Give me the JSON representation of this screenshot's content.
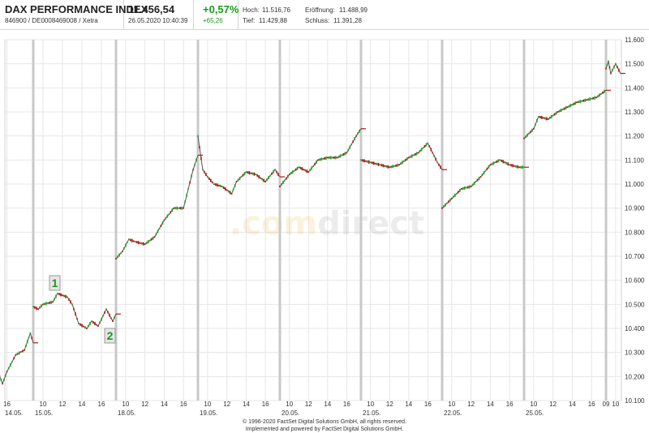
{
  "header": {
    "title": "DAX PERFORMANCE INDEX",
    "ids": "846900 / DE0008469008 / Xetra",
    "price": "11.456,54",
    "datetime": "26.05.2020 10:40:39",
    "change_pct": "+0,57%",
    "change_abs": "+65,26",
    "high_label": "Hoch:",
    "high_value": "11.516,76",
    "open_label": "Eröffnung:",
    "open_value": "11.488,99",
    "low_label": "Tief:",
    "low_value": "11.429,88",
    "close_label": "Schluss:",
    "close_value": "11.391,28"
  },
  "watermark": {
    "dot": ".",
    "com": "com",
    "direct": "direct"
  },
  "annotations": {
    "marker1": "1",
    "marker2": "2"
  },
  "copyright": {
    "line1": "© 1996-2020 FactSet Digital Solutions GmbH, all rights reserved.",
    "line2": "Implemented and powered by FactSet Digital Solutions GmbH."
  },
  "colors": {
    "up": "#2a9a2a",
    "down": "#b01818",
    "grid": "#e6e6e6",
    "divider": "#c8c8c8",
    "accent_green": "#1a9a1a"
  },
  "chart_data": {
    "type": "line",
    "title": "DAX PERFORMANCE INDEX",
    "ylim": [
      10100,
      11600
    ],
    "y_ticks": [
      "10.100",
      "10.200",
      "10.300",
      "10.400",
      "10.500",
      "10.600",
      "10.700",
      "10.800",
      "10.900",
      "11.000",
      "11.100",
      "11.200",
      "11.300",
      "11.400",
      "11.500",
      "11.600"
    ],
    "days": [
      {
        "label": "14.05.",
        "hours": [
          "16"
        ]
      },
      {
        "label": "15.05.",
        "hours": [
          "10",
          "12",
          "14",
          "16"
        ]
      },
      {
        "label": "18.05.",
        "hours": [
          "10",
          "12",
          "14",
          "16"
        ]
      },
      {
        "label": "19.05.",
        "hours": [
          "10",
          "12",
          "14",
          "16"
        ]
      },
      {
        "label": "20.05.",
        "hours": [
          "10",
          "12",
          "14",
          "16"
        ]
      },
      {
        "label": "21.05.",
        "hours": [
          "10",
          "12",
          "14",
          "16"
        ]
      },
      {
        "label": "22.05.",
        "hours": [
          "10",
          "12",
          "14",
          "16"
        ]
      },
      {
        "label": "25.05.",
        "hours": [
          "10",
          "12",
          "14",
          "16"
        ]
      },
      {
        "label": "",
        "hours": [
          "09",
          "10"
        ]
      }
    ],
    "series": [
      {
        "values": [
          {
            "x": "14.05. 14:30",
            "y": 10240
          },
          {
            "x": "14.05. 15:00",
            "y": 10270
          },
          {
            "x": "14.05. 15:20",
            "y": 10250
          },
          {
            "x": "14.05. 15:45",
            "y": 10170
          },
          {
            "x": "14.05. 16:00",
            "y": 10220
          },
          {
            "x": "14.05. 16:30",
            "y": 10290
          },
          {
            "x": "14.05. 17:00",
            "y": 10310
          },
          {
            "x": "14.05. 17:20",
            "y": 10380
          },
          {
            "x": "14.05. 17:30",
            "y": 10340
          },
          {
            "x": "15.05. 09:00",
            "y": 10490
          },
          {
            "x": "15.05. 09:30",
            "y": 10480
          },
          {
            "x": "15.05. 10:00",
            "y": 10500
          },
          {
            "x": "15.05. 11:00",
            "y": 10510
          },
          {
            "x": "15.05. 11:30",
            "y": 10545
          },
          {
            "x": "15.05. 12:30",
            "y": 10530
          },
          {
            "x": "15.05. 13:00",
            "y": 10500
          },
          {
            "x": "15.05. 13:40",
            "y": 10420
          },
          {
            "x": "15.05. 14:30",
            "y": 10400
          },
          {
            "x": "15.05. 15:00",
            "y": 10430
          },
          {
            "x": "15.05. 15:40",
            "y": 10410
          },
          {
            "x": "15.05. 16:30",
            "y": 10480
          },
          {
            "x": "15.05. 17:10",
            "y": 10430
          },
          {
            "x": "15.05. 17:30",
            "y": 10460
          },
          {
            "x": "18.05. 09:00",
            "y": 10690
          },
          {
            "x": "18.05. 09:40",
            "y": 10720
          },
          {
            "x": "18.05. 10:20",
            "y": 10770
          },
          {
            "x": "18.05. 11:00",
            "y": 10760
          },
          {
            "x": "18.05. 12:00",
            "y": 10750
          },
          {
            "x": "18.05. 13:00",
            "y": 10780
          },
          {
            "x": "18.05. 14:00",
            "y": 10850
          },
          {
            "x": "18.05. 15:00",
            "y": 10900
          },
          {
            "x": "18.05. 16:00",
            "y": 10900
          },
          {
            "x": "18.05. 17:00",
            "y": 11060
          },
          {
            "x": "18.05. 17:30",
            "y": 11120
          },
          {
            "x": "19.05. 09:00",
            "y": 11200
          },
          {
            "x": "19.05. 09:30",
            "y": 11060
          },
          {
            "x": "19.05. 10:00",
            "y": 11030
          },
          {
            "x": "19.05. 10:40",
            "y": 11000
          },
          {
            "x": "19.05. 11:30",
            "y": 10990
          },
          {
            "x": "19.05. 12:30",
            "y": 10960
          },
          {
            "x": "19.05. 13:00",
            "y": 11010
          },
          {
            "x": "19.05. 14:00",
            "y": 11050
          },
          {
            "x": "19.05. 15:00",
            "y": 11040
          },
          {
            "x": "19.05. 16:00",
            "y": 11010
          },
          {
            "x": "19.05. 17:00",
            "y": 11060
          },
          {
            "x": "19.05. 17:30",
            "y": 11030
          },
          {
            "x": "20.05. 09:00",
            "y": 10990
          },
          {
            "x": "20.05. 10:00",
            "y": 11040
          },
          {
            "x": "20.05. 11:00",
            "y": 11070
          },
          {
            "x": "20.05. 12:00",
            "y": 11050
          },
          {
            "x": "20.05. 13:00",
            "y": 11100
          },
          {
            "x": "20.05. 14:00",
            "y": 11110
          },
          {
            "x": "20.05. 15:00",
            "y": 11110
          },
          {
            "x": "20.05. 16:00",
            "y": 11130
          },
          {
            "x": "20.05. 17:00",
            "y": 11200
          },
          {
            "x": "20.05. 17:30",
            "y": 11230
          },
          {
            "x": "21.05. 09:00",
            "y": 11100
          },
          {
            "x": "21.05. 10:00",
            "y": 11090
          },
          {
            "x": "21.05. 11:00",
            "y": 11080
          },
          {
            "x": "21.05. 12:00",
            "y": 11070
          },
          {
            "x": "21.05. 13:00",
            "y": 11080
          },
          {
            "x": "21.05. 14:00",
            "y": 11110
          },
          {
            "x": "21.05. 15:00",
            "y": 11130
          },
          {
            "x": "21.05. 16:00",
            "y": 11170
          },
          {
            "x": "21.05. 17:00",
            "y": 11090
          },
          {
            "x": "21.05. 17:30",
            "y": 11060
          },
          {
            "x": "22.05. 09:00",
            "y": 10900
          },
          {
            "x": "22.05. 10:00",
            "y": 10940
          },
          {
            "x": "22.05. 11:00",
            "y": 10980
          },
          {
            "x": "22.05. 12:00",
            "y": 10990
          },
          {
            "x": "22.05. 13:00",
            "y": 11030
          },
          {
            "x": "22.05. 14:00",
            "y": 11080
          },
          {
            "x": "22.05. 15:00",
            "y": 11100
          },
          {
            "x": "22.05. 16:00",
            "y": 11080
          },
          {
            "x": "22.05. 17:00",
            "y": 11070
          },
          {
            "x": "22.05. 17:30",
            "y": 11070
          },
          {
            "x": "25.05. 09:00",
            "y": 11190
          },
          {
            "x": "25.05. 10:00",
            "y": 11230
          },
          {
            "x": "25.05. 10:30",
            "y": 11280
          },
          {
            "x": "25.05. 11:30",
            "y": 11270
          },
          {
            "x": "25.05. 12:30",
            "y": 11300
          },
          {
            "x": "25.05. 13:30",
            "y": 11320
          },
          {
            "x": "25.05. 14:30",
            "y": 11340
          },
          {
            "x": "25.05. 15:30",
            "y": 11350
          },
          {
            "x": "25.05. 16:30",
            "y": 11360
          },
          {
            "x": "25.05. 17:30",
            "y": 11390
          },
          {
            "x": "26.05. 09:00",
            "y": 11480
          },
          {
            "x": "26.05. 09:15",
            "y": 11510
          },
          {
            "x": "26.05. 09:30",
            "y": 11460
          },
          {
            "x": "26.05. 10:00",
            "y": 11500
          },
          {
            "x": "26.05. 10:30",
            "y": 11460
          }
        ]
      }
    ]
  }
}
